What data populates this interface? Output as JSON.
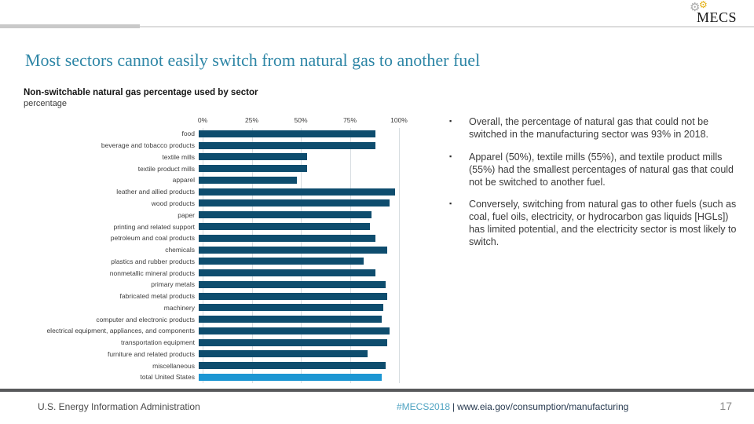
{
  "logo": {
    "text": "MECS"
  },
  "slide": {
    "title": "Most sectors cannot easily switch from natural gas to another fuel",
    "chart_heading": "Non-switchable natural gas percentage used by sector",
    "chart_unit": "percentage"
  },
  "chart_data": {
    "type": "bar",
    "orientation": "horizontal",
    "title": "Non-switchable natural gas percentage used by sector",
    "xlabel": "percentage",
    "xlim": [
      0,
      100
    ],
    "x_ticks": [
      "0%",
      "25%",
      "50%",
      "75%",
      "100%"
    ],
    "x_tick_values": [
      0,
      25,
      50,
      75,
      100
    ],
    "grid": true,
    "categories": [
      "food",
      "beverage and tobacco products",
      "textile mills",
      "textile product mills",
      "apparel",
      "leather and allied products",
      "wood products",
      "paper",
      "printing and related support",
      "petroleum and coal products",
      "chemicals",
      "plastics and rubber products",
      "nonmetallic mineral products",
      "primary metals",
      "fabricated metal products",
      "machinery",
      "computer and electronic products",
      "electrical equipment, appliances, and components",
      "transportation equipment",
      "furniture and related products",
      "miscellaneous",
      "total United States"
    ],
    "values": [
      90,
      90,
      55,
      55,
      50,
      100,
      97,
      88,
      87,
      90,
      96,
      84,
      90,
      95,
      96,
      94,
      93,
      97,
      96,
      86,
      95,
      93
    ],
    "bar_color": "#0e4d6e",
    "highlight_category": "total United States",
    "highlight_color": "#1c96d3"
  },
  "bullets": {
    "items": [
      {
        "text": "Overall, the percentage of natural gas that could not be switched in the manufacturing sector was 93% in 2018."
      },
      {
        "text": "Apparel (50%), textile mills (55%), and textile product mills (55%) had the smallest percentages of natural gas that could not be switched to another fuel."
      },
      {
        "text": "Conversely, switching from natural gas to other fuels (such as coal, fuel oils, electricity, or hydrocarbon gas liquids [HGLs]) has limited potential, and the electricity sector is most likely to switch."
      }
    ],
    "marker": "▪"
  },
  "footer": {
    "org": "U.S. Energy Information Administration",
    "hashtag": "#MECS2018",
    "separator": "|",
    "url": "www.eia.gov/consumption/manufacturing",
    "page_number": "17"
  },
  "colors": {
    "title": "#2e86a6",
    "bar": "#0e4d6e",
    "bar_highlight": "#1c96d3",
    "hashtag": "#4fa3c2"
  },
  "icons": {
    "gear": "⚙"
  }
}
